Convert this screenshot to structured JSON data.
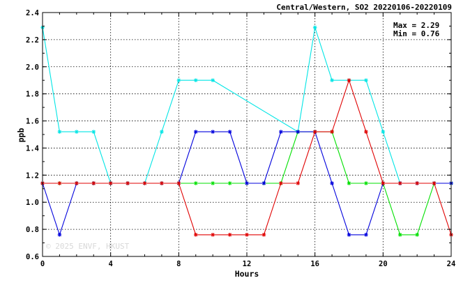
{
  "chart_data": {
    "type": "line",
    "title": "Central/Western, SO2 20220106-20220109",
    "xlabel": "Hours",
    "ylabel": "ppb",
    "xlim": [
      0,
      24
    ],
    "ylim": [
      0.6,
      2.4
    ],
    "xticks": [
      0,
      4,
      8,
      12,
      16,
      20,
      24
    ],
    "yticks": [
      0.6,
      0.8,
      1.0,
      1.2,
      1.4,
      1.6,
      1.8,
      2.0,
      2.2,
      2.4
    ],
    "ytick_labels": [
      "0.6",
      "0.8",
      "1.0",
      "1.2",
      "1.4",
      "1.6",
      "1.8",
      "2.0",
      "2.2",
      "2.4"
    ],
    "grid": true,
    "stats": {
      "max_label": "Max = 2.29",
      "min_label": "Min = 0.76"
    },
    "watermark": "© 2025 ENVF, HKUST",
    "series": [
      {
        "color": "#00e5e5",
        "points": [
          [
            0,
            2.29
          ],
          [
            1,
            1.52
          ],
          [
            2,
            1.52
          ],
          [
            3,
            1.52
          ],
          [
            4,
            1.14
          ],
          [
            5,
            1.14
          ],
          [
            6,
            1.14
          ],
          [
            7,
            1.52
          ],
          [
            8,
            1.9
          ],
          [
            9,
            1.9
          ],
          [
            10,
            1.9
          ],
          [
            15,
            1.52
          ],
          [
            16,
            2.29
          ],
          [
            17,
            1.9
          ],
          [
            18,
            1.9
          ],
          [
            19,
            1.9
          ],
          [
            20,
            1.52
          ],
          [
            21,
            1.14
          ],
          [
            22,
            1.14
          ],
          [
            23,
            1.14
          ],
          [
            24,
            1.14
          ]
        ]
      },
      {
        "color": "#00e000",
        "points": [
          [
            0,
            1.14
          ],
          [
            1,
            1.14
          ],
          [
            2,
            1.14
          ],
          [
            3,
            1.14
          ],
          [
            4,
            1.14
          ],
          [
            5,
            1.14
          ],
          [
            6,
            1.14
          ],
          [
            7,
            1.14
          ],
          [
            8,
            1.14
          ],
          [
            9,
            1.14
          ],
          [
            10,
            1.14
          ],
          [
            11,
            1.14
          ],
          [
            12,
            1.14
          ],
          [
            13,
            1.14
          ],
          [
            14,
            1.14
          ],
          [
            15,
            1.52
          ],
          [
            16,
            1.52
          ],
          [
            17,
            1.52
          ],
          [
            18,
            1.14
          ],
          [
            19,
            1.14
          ],
          [
            20,
            1.14
          ],
          [
            21,
            0.76
          ],
          [
            22,
            0.76
          ],
          [
            23,
            1.14
          ],
          [
            24,
            1.14
          ]
        ]
      },
      {
        "color": "#0000dd",
        "points": [
          [
            0,
            1.14
          ],
          [
            1,
            0.76
          ],
          [
            2,
            1.14
          ],
          [
            3,
            1.14
          ],
          [
            4,
            1.14
          ],
          [
            5,
            1.14
          ],
          [
            6,
            1.14
          ],
          [
            7,
            1.14
          ],
          [
            8,
            1.14
          ],
          [
            9,
            1.52
          ],
          [
            10,
            1.52
          ],
          [
            11,
            1.52
          ],
          [
            12,
            1.14
          ],
          [
            13,
            1.14
          ],
          [
            14,
            1.52
          ],
          [
            15,
            1.52
          ],
          [
            16,
            1.52
          ],
          [
            17,
            1.14
          ],
          [
            18,
            0.76
          ],
          [
            19,
            0.76
          ],
          [
            20,
            1.14
          ],
          [
            21,
            1.14
          ],
          [
            22,
            1.14
          ],
          [
            23,
            1.14
          ],
          [
            24,
            1.14
          ]
        ]
      },
      {
        "color": "#e00000",
        "points": [
          [
            0,
            1.14
          ],
          [
            1,
            1.14
          ],
          [
            2,
            1.14
          ],
          [
            3,
            1.14
          ],
          [
            4,
            1.14
          ],
          [
            5,
            1.14
          ],
          [
            6,
            1.14
          ],
          [
            7,
            1.14
          ],
          [
            8,
            1.14
          ],
          [
            9,
            0.76
          ],
          [
            10,
            0.76
          ],
          [
            11,
            0.76
          ],
          [
            12,
            0.76
          ],
          [
            13,
            0.76
          ],
          [
            14,
            1.14
          ],
          [
            15,
            1.14
          ],
          [
            16,
            1.52
          ],
          [
            17,
            1.52
          ],
          [
            18,
            1.9
          ],
          [
            19,
            1.52
          ],
          [
            20,
            1.14
          ],
          [
            21,
            1.14
          ],
          [
            22,
            1.14
          ],
          [
            23,
            1.14
          ],
          [
            24,
            0.76
          ]
        ]
      }
    ]
  }
}
